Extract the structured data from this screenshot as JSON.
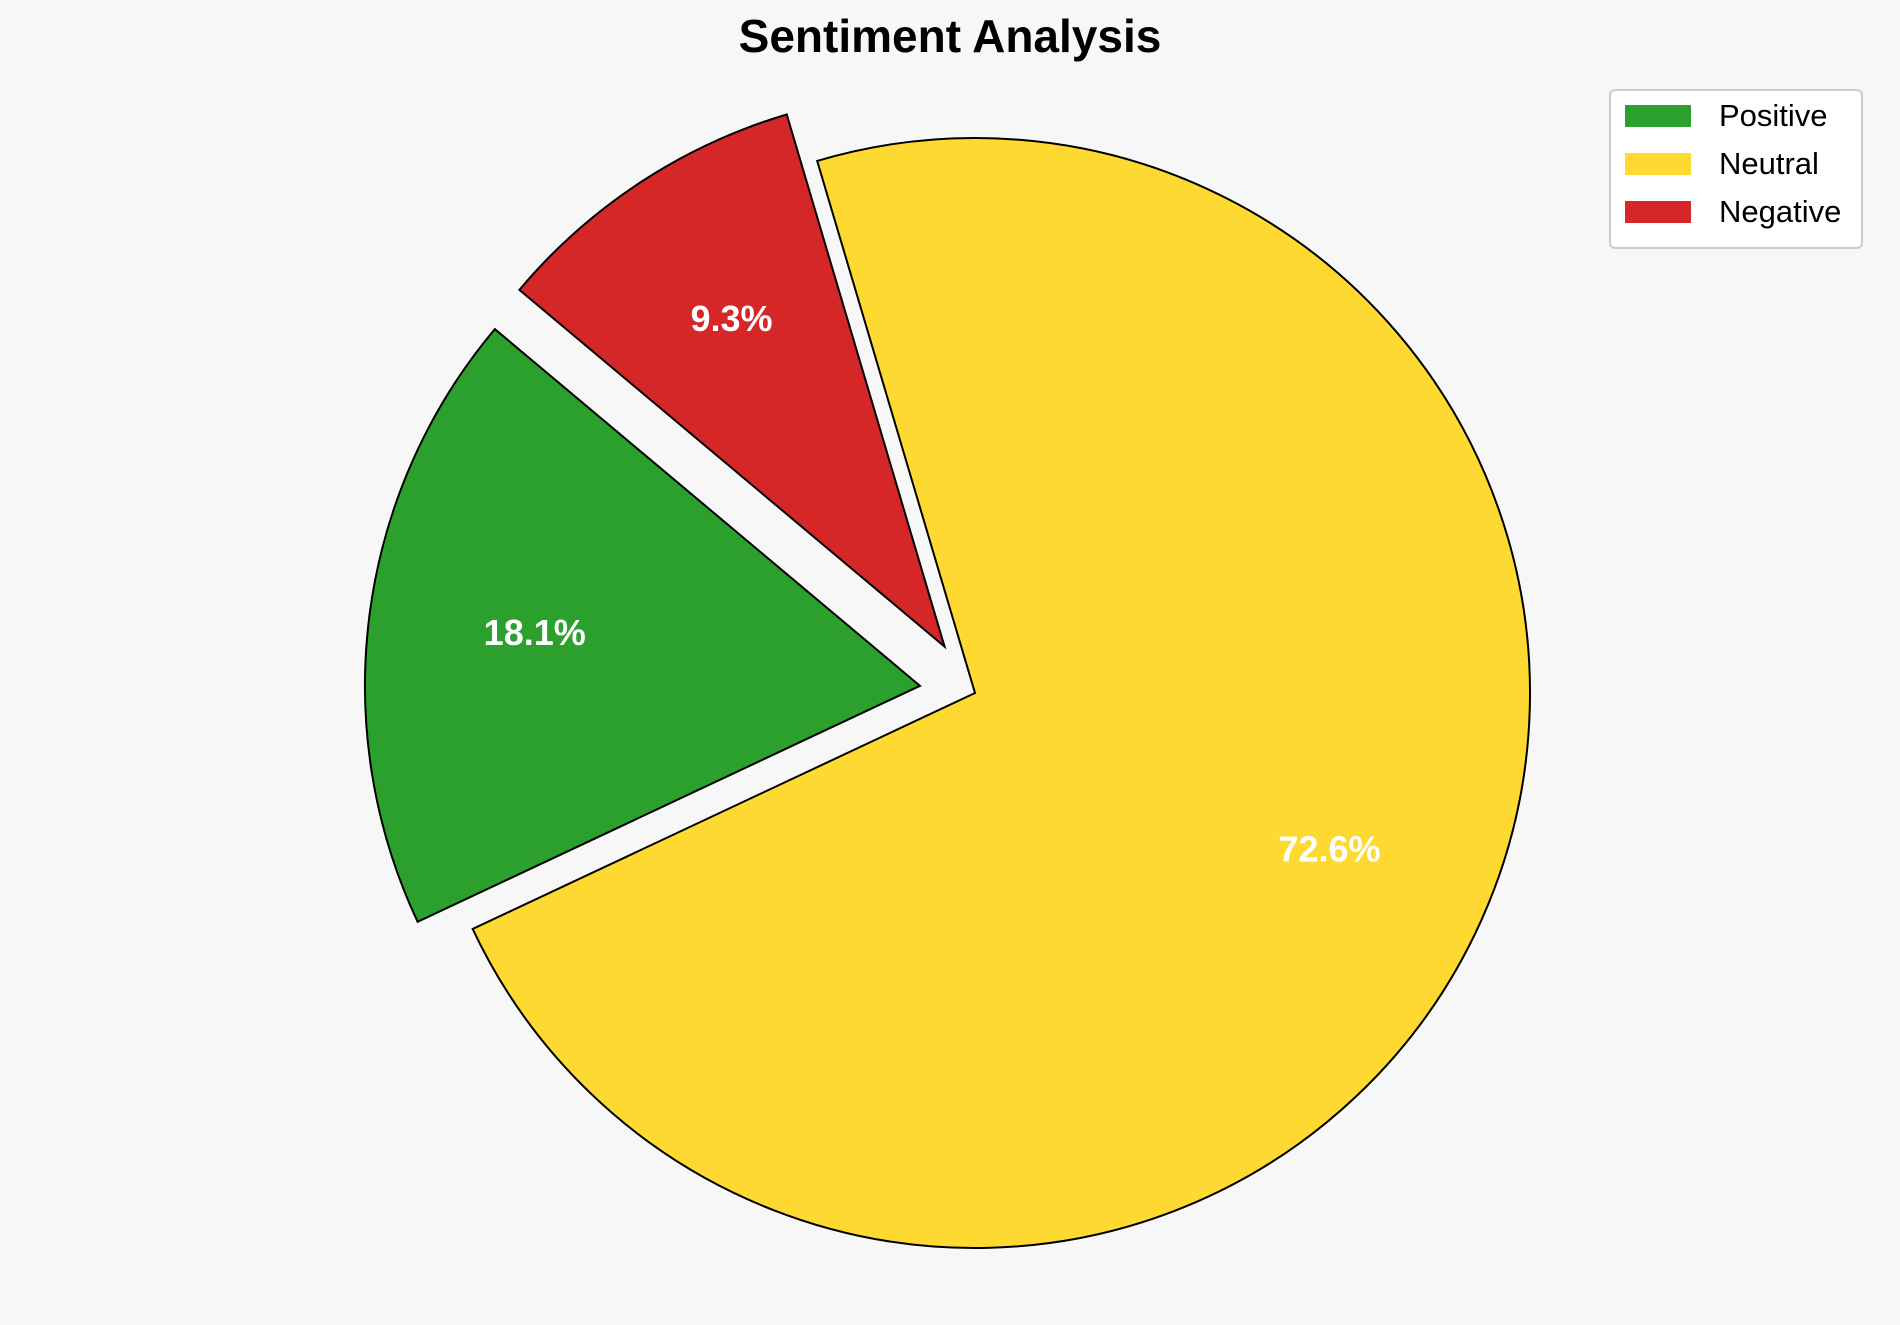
{
  "chart_data": {
    "type": "pie",
    "title": "Sentiment Analysis",
    "categories": [
      "Positive",
      "Neutral",
      "Negative"
    ],
    "values": [
      18.1,
      72.6,
      9.3
    ],
    "value_labels": [
      "18.1%",
      "72.6%",
      "9.3%"
    ],
    "colors": [
      "#2ca02c",
      "#fdd931",
      "#d62728"
    ],
    "explode": [
      0.1,
      0,
      0.1
    ],
    "startangle": 140,
    "legend": "upper right"
  }
}
